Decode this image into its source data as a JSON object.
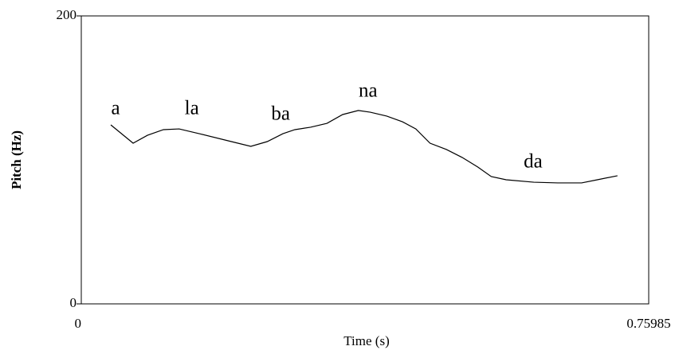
{
  "chart_data": {
    "type": "line",
    "x_label": "Time (s)",
    "y_label": "Pitch (Hz)",
    "x": [
      0.0395,
      0.0694,
      0.0886,
      0.11,
      0.131,
      0.158,
      0.201,
      0.227,
      0.249,
      0.27,
      0.286,
      0.307,
      0.329,
      0.35,
      0.371,
      0.387,
      0.409,
      0.43,
      0.448,
      0.467,
      0.489,
      0.51,
      0.531,
      0.549,
      0.569,
      0.606,
      0.638,
      0.67,
      0.691,
      0.718
    ],
    "values": [
      124.3,
      111.6,
      117.1,
      121.0,
      121.5,
      118.2,
      112.7,
      109.4,
      112.7,
      118.2,
      121.0,
      122.7,
      125.4,
      131.5,
      134.3,
      133.1,
      130.4,
      126.5,
      121.5,
      111.6,
      107.2,
      101.7,
      95.0,
      88.4,
      86.2,
      84.5,
      84.0,
      84.0,
      86.2,
      89.0
    ],
    "color": "#000000",
    "xlim": [
      0,
      0.75985
    ],
    "xticks": [
      0,
      0.75985
    ],
    "ylim": [
      0,
      200
    ],
    "yticks": [
      0,
      200
    ],
    "annotations": [
      {
        "text": "a",
        "x": 0.046,
        "y": 134.8
      },
      {
        "text": "la",
        "x": 0.148,
        "y": 135.0
      },
      {
        "text": "ba",
        "x": 0.267,
        "y": 131.0
      },
      {
        "text": "na",
        "x": 0.384,
        "y": 147.0
      },
      {
        "text": "da",
        "x": 0.605,
        "y": 98.0
      }
    ]
  }
}
